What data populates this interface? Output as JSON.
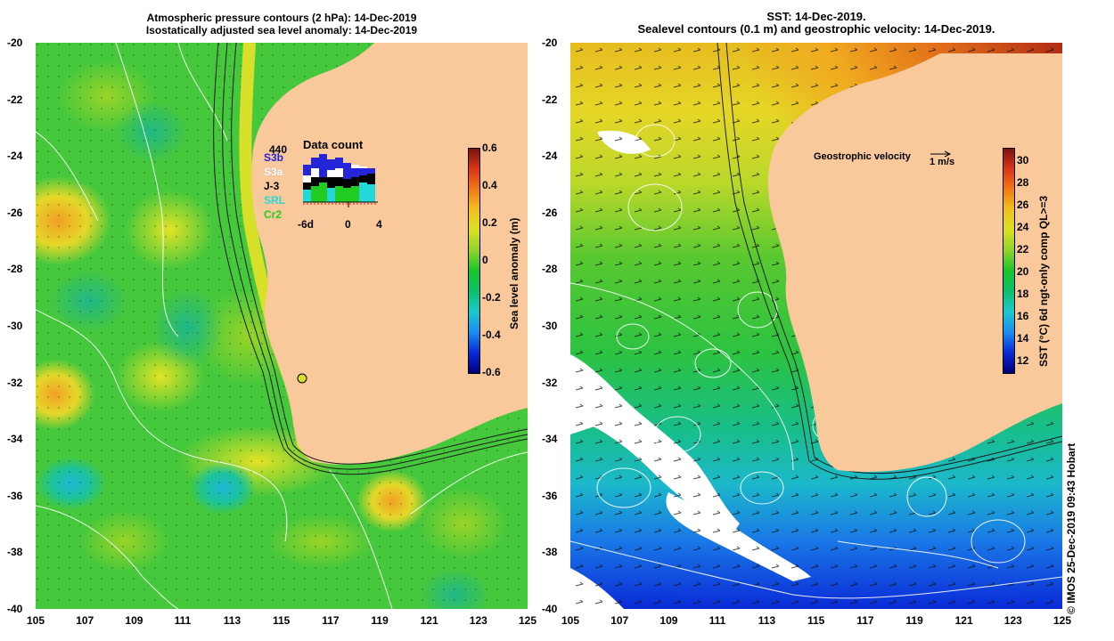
{
  "left_panel": {
    "title_line1": "Atmospheric pressure contours (2 hPa): 14-Dec-2019",
    "title_line2": "Isostatically adjusted sea level anomaly: 14-Dec-2019",
    "colorbar": {
      "label": "Sea level anomaly (m)",
      "ticks": [
        "0.6",
        "0.4",
        "0.2",
        "0",
        "-0.2",
        "-0.4",
        "-0.6"
      ],
      "colors": [
        "#00007a",
        "#0a2ad8",
        "#1b8cf0",
        "#1cc8d0",
        "#0abf6a",
        "#18c42a",
        "#8ed22a",
        "#d9e024",
        "#f0c220",
        "#f07a18",
        "#d8361a",
        "#7a1410"
      ]
    },
    "inset": {
      "title": "Data count",
      "max_label": "440",
      "legend": [
        {
          "name": "S3b",
          "color": "#2424d8"
        },
        {
          "name": "S3a",
          "color": "#ffffff"
        },
        {
          "name": "J-3",
          "color": "#000000"
        },
        {
          "name": "SRL",
          "color": "#22d8d8"
        },
        {
          "name": "Cr2",
          "color": "#22cc22"
        }
      ],
      "x_ticks": [
        "-6d",
        "0",
        "4"
      ]
    }
  },
  "right_panel": {
    "title_line1": "SST: 14-Dec-2019.",
    "title_line2": "Sealevel contours (0.1 m) and geostrophic velocity: 14-Dec-2019.",
    "velocity_label": "Geostrophic velocity",
    "velocity_scale": "1 m/s",
    "colorbar": {
      "label": "SST (°C) 6d ngt-only comp QL>=3",
      "ticks": [
        "30",
        "28",
        "26",
        "24",
        "22",
        "20",
        "18",
        "16",
        "14",
        "12"
      ],
      "colors": [
        "#00007a",
        "#0a2ad8",
        "#1b8cf0",
        "#1cc8d0",
        "#0abf6a",
        "#18c42a",
        "#8ed22a",
        "#d9e024",
        "#f0c220",
        "#f07a18",
        "#d8361a",
        "#7a1410"
      ]
    },
    "credit": "© IMOS 25-Dec-2019 09:43 Hobart"
  },
  "axes": {
    "x_ticks": [
      "105",
      "107",
      "109",
      "111",
      "113",
      "115",
      "117",
      "119",
      "121",
      "123",
      "125"
    ],
    "y_ticks": [
      "-20",
      "-22",
      "-24",
      "-26",
      "-28",
      "-30",
      "-32",
      "-34",
      "-36",
      "-38",
      "-40"
    ]
  },
  "colors": {
    "land": "#f9c89b",
    "sla_water": "#46c83c",
    "contour": "#ffffff"
  }
}
